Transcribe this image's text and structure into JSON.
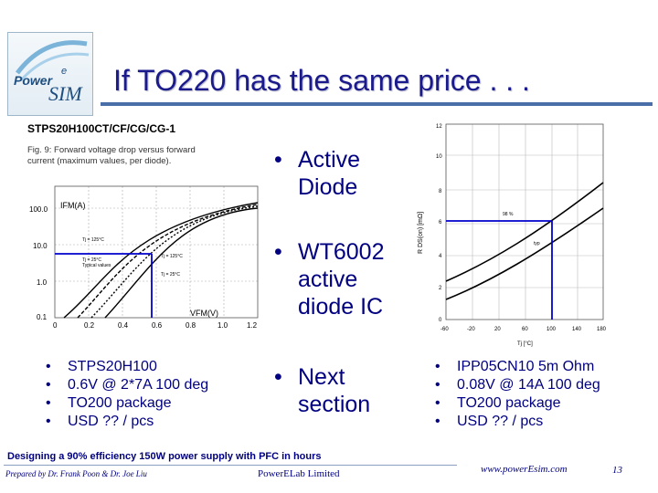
{
  "logo": {
    "power": "Power",
    "sup": "e",
    "sim": "SIM"
  },
  "slide": {
    "title": "If TO220 has the same price . . ."
  },
  "figure_left": {
    "heading": "STPS20H100CT/CF/CG/CG-1",
    "caption_line1": "Fig. 9: Forward voltage drop versus forward",
    "caption_line2": "current (maximum values, per diode).",
    "y_axis_label": "IFM(A)",
    "x_axis_label": "VFM(V)",
    "y_ticks": [
      "100.0",
      "10.0",
      "1.0",
      "0.1"
    ],
    "x_ticks": [
      "0",
      "0.2",
      "0.4",
      "0.6",
      "0.8",
      "1.0",
      "1.2"
    ],
    "curve_labels": [
      "Tj = 125°C",
      "Tj = 25°C",
      "Typical values",
      "Tj = 125°C",
      "Tj = 25°C"
    ]
  },
  "figure_right": {
    "y_label": "R DS(on) [mΩ]",
    "x_label": "Tj [°C]",
    "y_ticks": [
      "0",
      "2",
      "4",
      "6",
      "8",
      "10",
      "12"
    ],
    "x_ticks": [
      "-60",
      "-20",
      "20",
      "60",
      "100",
      "140",
      "180"
    ],
    "curve_labels": [
      "98 %",
      "typ"
    ]
  },
  "middle_bullets": [
    {
      "lines": [
        "Active",
        "Diode"
      ]
    },
    {
      "lines": [
        "WT6002",
        "active",
        "diode IC"
      ]
    },
    {
      "lines": [
        "Next",
        "section"
      ]
    }
  ],
  "left_list": [
    "STPS20H100",
    "0.6V @ 2*7A 100 deg",
    "TO200 package",
    "USD ?? / pcs"
  ],
  "right_list": [
    "IPP05CN10 5m Ohm",
    "0.08V @ 14A 100 deg",
    "TO200 package",
    "USD ?? / pcs"
  ],
  "footer": {
    "title": "Designing a 90% efficiency 150W power supply with PFC in hours",
    "prepared": "Prepared by Dr. Frank Poon & Dr. Joe Liu",
    "company": "PowerELab Limited",
    "website": "www.powerEsim.com",
    "page_number": "13"
  },
  "colors": {
    "accent": "#000080",
    "highlight": "#0000cc",
    "rule": "#4a6ea8"
  }
}
